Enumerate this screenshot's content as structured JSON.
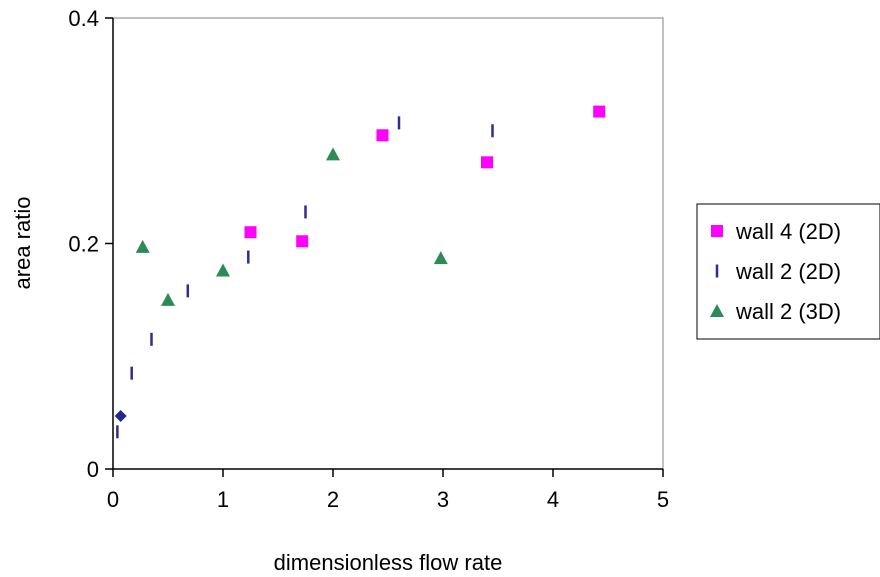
{
  "chart_data": {
    "type": "scatter",
    "title": "",
    "xlabel": "dimensionless flow rate",
    "ylabel": "area ratio",
    "xlim": [
      0,
      5
    ],
    "ylim": [
      0,
      0.4
    ],
    "x_ticks": [
      0,
      1,
      2,
      3,
      4,
      5
    ],
    "x_tick_labels": [
      "0",
      "1",
      "2",
      "3",
      "4",
      "5"
    ],
    "y_ticks": [
      0,
      0.2,
      0.4
    ],
    "y_tick_labels": [
      "0",
      "0.2",
      "0.4"
    ],
    "grid": false,
    "legend_position": "right",
    "series": [
      {
        "name": "wall 4 (2D)",
        "marker": "square",
        "color": "#ff00ff",
        "points": [
          [
            1.25,
            0.21
          ],
          [
            1.72,
            0.202
          ],
          [
            2.45,
            0.296
          ],
          [
            3.4,
            0.272
          ],
          [
            4.42,
            0.317
          ]
        ]
      },
      {
        "name": "wall 2 (2D)",
        "marker": "dash",
        "color": "#2e2e8f",
        "points": [
          [
            0.04,
            0.033
          ],
          [
            0.17,
            0.085
          ],
          [
            0.35,
            0.115
          ],
          [
            0.68,
            0.158
          ],
          [
            1.23,
            0.188
          ],
          [
            1.75,
            0.228
          ],
          [
            2.6,
            0.307
          ],
          [
            3.45,
            0.3
          ]
        ]
      },
      {
        "name": "wall 2 (3D)",
        "marker": "triangle",
        "color": "#2e8b57",
        "points": [
          [
            0.27,
            0.197
          ],
          [
            0.5,
            0.15
          ],
          [
            1.0,
            0.176
          ],
          [
            2.0,
            0.279
          ],
          [
            2.98,
            0.187
          ]
        ]
      },
      {
        "name": "",
        "marker": "diamond",
        "color": "#1f2a8a",
        "points": [
          [
            0.07,
            0.047
          ]
        ]
      }
    ]
  }
}
